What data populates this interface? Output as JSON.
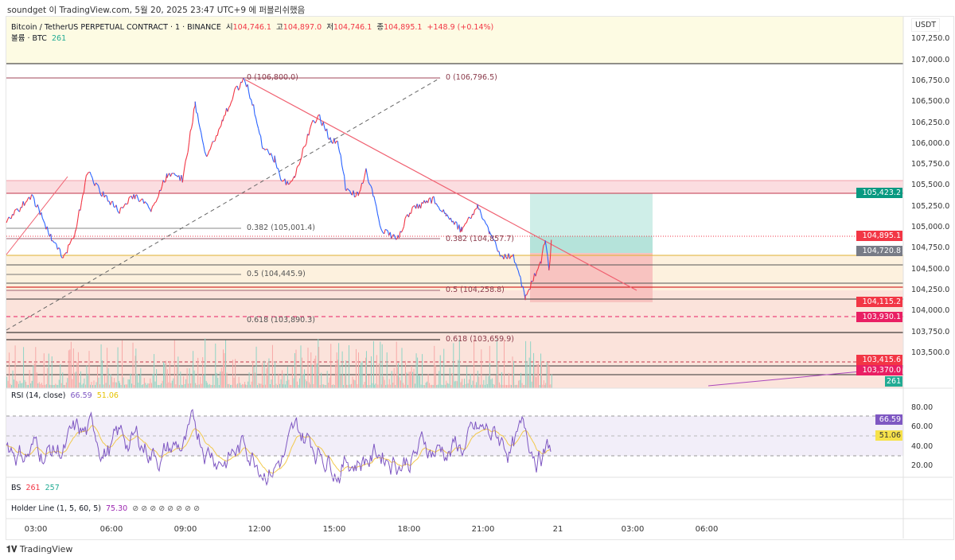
{
  "published": "soundget 이 TradingView.com, 5월 20, 2025 23:47 UTC+9 에 퍼블리쉬했음",
  "symbol": {
    "title": "Bitcoin / TetherUS PERPETUAL CONTRACT · 1 · BINANCE",
    "o_label": "시",
    "o": "104,746.1",
    "h_label": "고",
    "h": "104,897.0",
    "l_label": "저",
    "l": "104,746.1",
    "c_label": "종",
    "c": "104,895.1",
    "change": "+148.9 (+0.14%)",
    "vol_label": "볼륨 · BTC",
    "vol": "261"
  },
  "currency": "USDT",
  "price_ticks": [
    "107,250.0",
    "107,000.0",
    "106,750.0",
    "106,500.0",
    "106,250.0",
    "106,000.0",
    "105,750.0",
    "105,500.0",
    "105,250.0",
    "105,000.0",
    "104,750.0",
    "104,500.0",
    "104,250.0",
    "104,000.0",
    "103,750.0",
    "103,500.0"
  ],
  "price_labels": [
    {
      "text": "105,423.2",
      "color": "#089981"
    },
    {
      "text": "104,895.1",
      "color": "#f23645"
    },
    {
      "text": "104,720.8",
      "color": "#787b86"
    },
    {
      "text": "104,115.2",
      "color": "#f23645"
    },
    {
      "text": "103,930.1",
      "color": "#e91e63"
    },
    {
      "text": "103,415.6",
      "color": "#f23645"
    },
    {
      "text": "103,370.0",
      "color": "#e91e63"
    },
    {
      "text": "261",
      "color": "#22ab94"
    }
  ],
  "fib_labels": [
    "0 (106,800.0)",
    "0 (106,796.5)",
    "0.382 (105,001.4)",
    "0.382 (104,857.7)",
    "0.5 (104,445.9)",
    "0.5 (104,258.8)",
    "0.618 (103,890.3)",
    "0.618 (103,659.9)"
  ],
  "rsi": {
    "title": "RSI (14, close)",
    "value": "66.59",
    "ma": "51.06",
    "ticks": [
      "80.00",
      "60.00",
      "40.00",
      "20.00"
    ],
    "label_value": "66.59",
    "label_ma": "51.06"
  },
  "bs": {
    "title": "BS",
    "v1": "261",
    "v2": "257"
  },
  "holder": {
    "title": "Holder Line (1, 5, 60, 5)",
    "value": "75.30",
    "icons": "⊘ ⊘ ⊘ ⊘ ⊘ ⊘ ⊘ ⊘"
  },
  "time_ticks": [
    "03:00",
    "06:00",
    "09:00",
    "12:00",
    "15:00",
    "18:00",
    "21:00",
    "21",
    "03:00",
    "06:00"
  ],
  "brand": "TradingView",
  "chart_data": {
    "type": "line",
    "title": "Bitcoin / TetherUS PERPETUAL CONTRACT · 1 · BINANCE",
    "ylim": [
      103300,
      107300
    ],
    "points": [
      [
        "01:49",
        105057
      ],
      [
        "02:50",
        105390
      ],
      [
        "03:38",
        104867
      ],
      [
        "04:07",
        104629
      ],
      [
        "04:36",
        104962
      ],
      [
        "05:05",
        105675
      ],
      [
        "05:34",
        105437
      ],
      [
        "06:22",
        105200
      ],
      [
        "07:01",
        105390
      ],
      [
        "07:39",
        105200
      ],
      [
        "08:17",
        105627
      ],
      [
        "08:56",
        105580
      ],
      [
        "09:25",
        106483
      ],
      [
        "09:53",
        105817
      ],
      [
        "10:32",
        106293
      ],
      [
        "11:01",
        106625
      ],
      [
        "11:26",
        106768
      ],
      [
        "11:49",
        106388
      ],
      [
        "12:08",
        105960
      ],
      [
        "12:37",
        105817
      ],
      [
        "12:56",
        105532
      ],
      [
        "13:25",
        105580
      ],
      [
        "14:04",
        106198
      ],
      [
        "14:23",
        106340
      ],
      [
        "14:52",
        106055
      ],
      [
        "15:11",
        106008
      ],
      [
        "15:30",
        105437
      ],
      [
        "15:59",
        105390
      ],
      [
        "16:18",
        105675
      ],
      [
        "16:37",
        105342
      ],
      [
        "16:56",
        104962
      ],
      [
        "17:35",
        104867
      ],
      [
        "18:04",
        105200
      ],
      [
        "19:02",
        105342
      ],
      [
        "19:31",
        105152
      ],
      [
        "20:09",
        104962
      ],
      [
        "20:47",
        105247
      ],
      [
        "21:16",
        104962
      ],
      [
        "21:45",
        104629
      ],
      [
        "22:14",
        104677
      ],
      [
        "22:43",
        104154
      ],
      [
        "23:02",
        104392
      ],
      [
        "23:21",
        104582
      ],
      [
        "23:31",
        104867
      ],
      [
        "23:40",
        104487
      ],
      [
        "23:47",
        104895
      ]
    ]
  }
}
